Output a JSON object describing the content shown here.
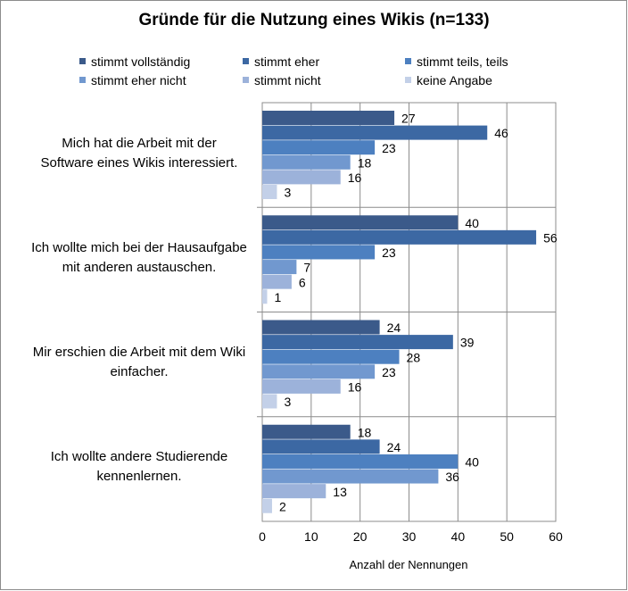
{
  "chart_data": {
    "type": "bar",
    "orientation": "horizontal",
    "title": "Gründe für die Nutzung eines Wikis (n=133)",
    "xlabel": "Anzahl der Nennungen",
    "ylabel": "",
    "xlim": [
      0,
      60
    ],
    "xticks": [
      0,
      10,
      20,
      30,
      40,
      50,
      60
    ],
    "grid": "vertical",
    "legend_position": "top",
    "categories": [
      "Mich hat die Arbeit mit der Software eines Wikis interessiert.",
      "Ich wollte mich bei der Hausaufgabe mit anderen austauschen.",
      "Mir erschien die Arbeit mit dem Wiki einfacher.",
      "Ich wollte andere Studierende kennenlernen."
    ],
    "category_lines": [
      [
        "Mich hat die Arbeit mit der",
        "Software eines Wikis interessiert."
      ],
      [
        "Ich wollte mich bei der Hausaufgabe",
        "mit anderen austauschen."
      ],
      [
        "Mir erschien die Arbeit mit dem Wiki",
        "einfacher."
      ],
      [
        "Ich wollte andere Studierende",
        "kennenlernen."
      ]
    ],
    "series": [
      {
        "name": "stimmt vollständig",
        "color": "#3b5a8a",
        "values": [
          27,
          40,
          24,
          18
        ]
      },
      {
        "name": "stimmt eher",
        "color": "#3c68a3",
        "values": [
          46,
          56,
          39,
          24
        ]
      },
      {
        "name": "stimmt teils, teils",
        "color": "#4d80c0",
        "values": [
          23,
          23,
          28,
          40
        ]
      },
      {
        "name": "stimmt eher nicht",
        "color": "#7198cf",
        "values": [
          18,
          7,
          23,
          36
        ]
      },
      {
        "name": "stimmt nicht",
        "color": "#9cb2da",
        "values": [
          16,
          6,
          16,
          13
        ]
      },
      {
        "name": "keine Angabe",
        "color": "#c3d0e8",
        "values": [
          3,
          1,
          3,
          2
        ]
      }
    ]
  }
}
